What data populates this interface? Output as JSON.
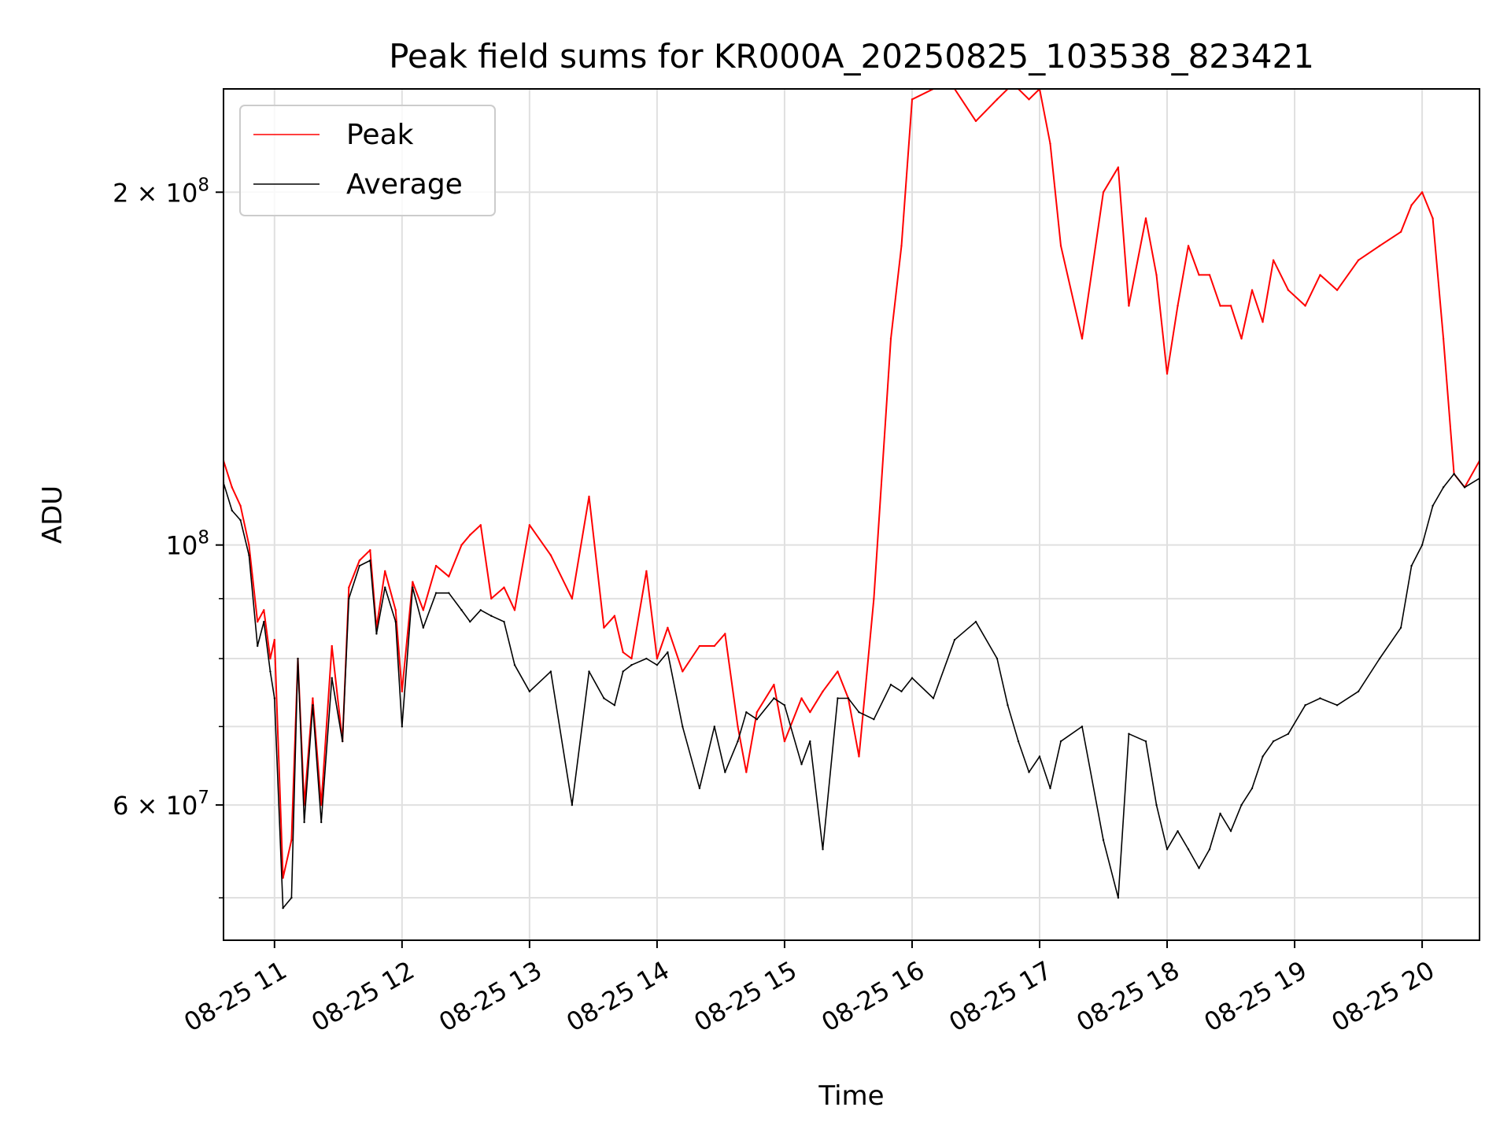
{
  "chart_data": {
    "type": "line",
    "title": "Peak field sums for KR000A_20250825_103538_823421",
    "xlabel": "Time",
    "ylabel": "ADU",
    "y_scale": "log",
    "ylim": [
      46000000,
      245000000
    ],
    "xlim": [
      "2025-08-25T10:36:00",
      "2025-08-25T20:27:00"
    ],
    "grid": true,
    "legend_position": "top-left",
    "x_ticks": [
      {
        "value": "2025-08-25T11:00:00",
        "label": "08-25 11"
      },
      {
        "value": "2025-08-25T12:00:00",
        "label": "08-25 12"
      },
      {
        "value": "2025-08-25T13:00:00",
        "label": "08-25 13"
      },
      {
        "value": "2025-08-25T14:00:00",
        "label": "08-25 14"
      },
      {
        "value": "2025-08-25T15:00:00",
        "label": "08-25 15"
      },
      {
        "value": "2025-08-25T16:00:00",
        "label": "08-25 16"
      },
      {
        "value": "2025-08-25T17:00:00",
        "label": "08-25 17"
      },
      {
        "value": "2025-08-25T18:00:00",
        "label": "08-25 18"
      },
      {
        "value": "2025-08-25T19:00:00",
        "label": "08-25 19"
      },
      {
        "value": "2025-08-25T20:00:00",
        "label": "08-25 20"
      }
    ],
    "y_major_ticks": [
      {
        "value": 60000000,
        "mantissa": "6",
        "exponent": "7"
      },
      {
        "value": 100000000,
        "mantissa": "",
        "exponent": "8"
      },
      {
        "value": 200000000,
        "mantissa": "2",
        "exponent": "8"
      }
    ],
    "y_minor_ticks": [
      50000000,
      70000000,
      80000000,
      90000000
    ],
    "times": [
      "2025-08-25T10:36:00",
      "2025-08-25T10:40:00",
      "2025-08-25T10:44:00",
      "2025-08-25T10:48:00",
      "2025-08-25T10:52:00",
      "2025-08-25T10:55:00",
      "2025-08-25T10:58:00",
      "2025-08-25T11:00:00",
      "2025-08-25T11:04:00",
      "2025-08-25T11:08:00",
      "2025-08-25T11:11:00",
      "2025-08-25T11:14:00",
      "2025-08-25T11:18:00",
      "2025-08-25T11:22:00",
      "2025-08-25T11:27:00",
      "2025-08-25T11:32:00",
      "2025-08-25T11:35:00",
      "2025-08-25T11:40:00",
      "2025-08-25T11:45:00",
      "2025-08-25T11:48:00",
      "2025-08-25T11:52:00",
      "2025-08-25T11:57:00",
      "2025-08-25T12:00:00",
      "2025-08-25T12:05:00",
      "2025-08-25T12:10:00",
      "2025-08-25T12:16:00",
      "2025-08-25T12:22:00",
      "2025-08-25T12:28:00",
      "2025-08-25T12:32:00",
      "2025-08-25T12:37:00",
      "2025-08-25T12:42:00",
      "2025-08-25T12:48:00",
      "2025-08-25T12:53:00",
      "2025-08-25T13:00:00",
      "2025-08-25T13:10:00",
      "2025-08-25T13:20:00",
      "2025-08-25T13:28:00",
      "2025-08-25T13:35:00",
      "2025-08-25T13:40:00",
      "2025-08-25T13:44:00",
      "2025-08-25T13:48:00",
      "2025-08-25T13:55:00",
      "2025-08-25T14:00:00",
      "2025-08-25T14:05:00",
      "2025-08-25T14:12:00",
      "2025-08-25T14:20:00",
      "2025-08-25T14:27:00",
      "2025-08-25T14:32:00",
      "2025-08-25T14:38:00",
      "2025-08-25T14:42:00",
      "2025-08-25T14:47:00",
      "2025-08-25T14:55:00",
      "2025-08-25T15:00:00",
      "2025-08-25T15:08:00",
      "2025-08-25T15:12:00",
      "2025-08-25T15:18:00",
      "2025-08-25T15:25:00",
      "2025-08-25T15:30:00",
      "2025-08-25T15:35:00",
      "2025-08-25T15:42:00",
      "2025-08-25T15:50:00",
      "2025-08-25T15:55:00",
      "2025-08-25T16:00:00",
      "2025-08-25T16:10:00",
      "2025-08-25T16:20:00",
      "2025-08-25T16:30:00",
      "2025-08-25T16:40:00",
      "2025-08-25T16:45:00",
      "2025-08-25T16:50:00",
      "2025-08-25T16:55:00",
      "2025-08-25T17:00:00",
      "2025-08-25T17:05:00",
      "2025-08-25T17:10:00",
      "2025-08-25T17:20:00",
      "2025-08-25T17:30:00",
      "2025-08-25T17:37:00",
      "2025-08-25T17:42:00",
      "2025-08-25T17:50:00",
      "2025-08-25T17:55:00",
      "2025-08-25T18:00:00",
      "2025-08-25T18:05:00",
      "2025-08-25T18:10:00",
      "2025-08-25T18:15:00",
      "2025-08-25T18:20:00",
      "2025-08-25T18:25:00",
      "2025-08-25T18:30:00",
      "2025-08-25T18:35:00",
      "2025-08-25T18:40:00",
      "2025-08-25T18:45:00",
      "2025-08-25T18:50:00",
      "2025-08-25T18:57:00",
      "2025-08-25T19:05:00",
      "2025-08-25T19:12:00",
      "2025-08-25T19:20:00",
      "2025-08-25T19:30:00",
      "2025-08-25T19:40:00",
      "2025-08-25T19:50:00",
      "2025-08-25T19:55:00",
      "2025-08-25T20:00:00",
      "2025-08-25T20:05:00",
      "2025-08-25T20:10:00",
      "2025-08-25T20:15:00",
      "2025-08-25T20:20:00",
      "2025-08-25T20:27:00"
    ],
    "series": [
      {
        "name": "Peak",
        "color": "#ff0000",
        "values": [
          118000000,
          112000000,
          108000000,
          100000000,
          86000000,
          88000000,
          80000000,
          83000000,
          52000000,
          56000000,
          80000000,
          60000000,
          74000000,
          60000000,
          82000000,
          68000000,
          92000000,
          97000000,
          99000000,
          85000000,
          95000000,
          88000000,
          75000000,
          93000000,
          88000000,
          96000000,
          94000000,
          100000000,
          102000000,
          104000000,
          90000000,
          92000000,
          88000000,
          104000000,
          98000000,
          90000000,
          110000000,
          85000000,
          87000000,
          81000000,
          80000000,
          95000000,
          80000000,
          85000000,
          78000000,
          82000000,
          82000000,
          84000000,
          70000000,
          64000000,
          72000000,
          76000000,
          68000000,
          74000000,
          72000000,
          75000000,
          78000000,
          74000000,
          66000000,
          90000000,
          150000000,
          180000000,
          240000000,
          245000000,
          245000000,
          230000000,
          240000000,
          245000000,
          245000000,
          240000000,
          245000000,
          220000000,
          180000000,
          150000000,
          200000000,
          210000000,
          160000000,
          190000000,
          170000000,
          140000000,
          160000000,
          180000000,
          170000000,
          170000000,
          160000000,
          160000000,
          150000000,
          165000000,
          155000000,
          175000000,
          165000000,
          160000000,
          170000000,
          165000000,
          175000000,
          180000000,
          185000000,
          195000000,
          200000000,
          190000000,
          150000000,
          115000000,
          112000000,
          118000000
        ]
      },
      {
        "name": "Average",
        "color": "#000000",
        "values": [
          113000000,
          107000000,
          105000000,
          98000000,
          82000000,
          86000000,
          78000000,
          74000000,
          49000000,
          50000000,
          80000000,
          58000000,
          73000000,
          58000000,
          77000000,
          68000000,
          90000000,
          96000000,
          97000000,
          84000000,
          92000000,
          86000000,
          70000000,
          92000000,
          85000000,
          91000000,
          91000000,
          88000000,
          86000000,
          88000000,
          87000000,
          86000000,
          79000000,
          75000000,
          78000000,
          60000000,
          78000000,
          74000000,
          73000000,
          78000000,
          79000000,
          80000000,
          79000000,
          81000000,
          70000000,
          62000000,
          70000000,
          64000000,
          68000000,
          72000000,
          71000000,
          74000000,
          73000000,
          65000000,
          68000000,
          55000000,
          74000000,
          74000000,
          72000000,
          71000000,
          76000000,
          75000000,
          77000000,
          74000000,
          83000000,
          86000000,
          80000000,
          73000000,
          68000000,
          64000000,
          66000000,
          62000000,
          68000000,
          70000000,
          56000000,
          50000000,
          69000000,
          68000000,
          60000000,
          55000000,
          57000000,
          55000000,
          53000000,
          55000000,
          59000000,
          57000000,
          60000000,
          62000000,
          66000000,
          68000000,
          69000000,
          73000000,
          74000000,
          73000000,
          75000000,
          80000000,
          85000000,
          96000000,
          100000000,
          108000000,
          112000000,
          115000000,
          112000000,
          114000000
        ]
      }
    ]
  }
}
